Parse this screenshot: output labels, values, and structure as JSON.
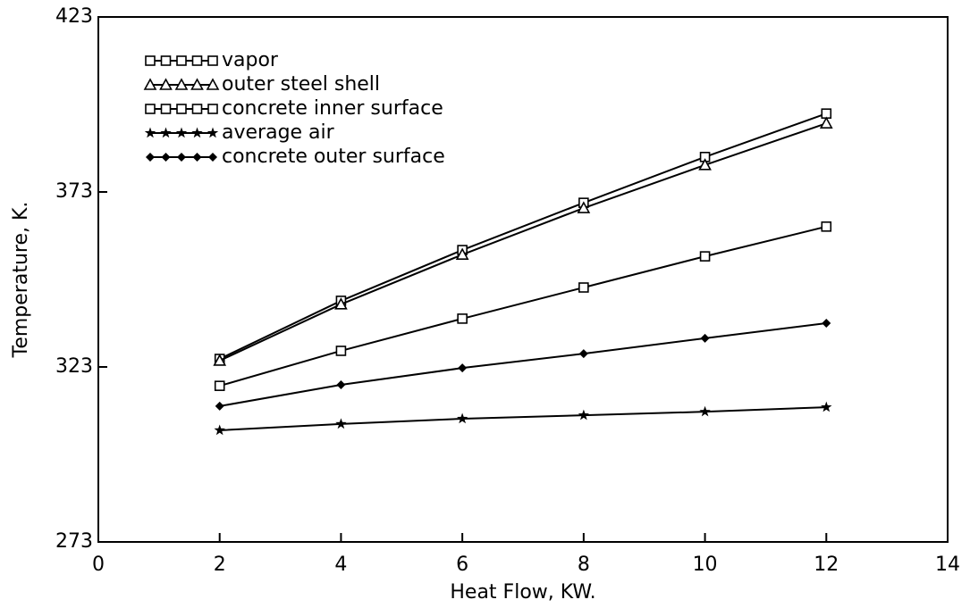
{
  "chart_data": {
    "type": "line",
    "x_label": "Heat Flow, KW.",
    "y_label": "Temperature, K.",
    "x": [
      2,
      4,
      6,
      8,
      10,
      12
    ],
    "series": [
      {
        "name": "vapor",
        "color": "#000000",
        "marker": "square",
        "values": [
          325.3,
          341.9,
          356.4,
          369.9,
          383.0,
          395.4
        ]
      },
      {
        "name": "outer steel shell",
        "color": "#000000",
        "marker": "triangle",
        "values": [
          324.8,
          340.9,
          355.1,
          368.4,
          380.7,
          392.6
        ]
      },
      {
        "name": "concrete inner surface",
        "color": "#000000",
        "marker": "square",
        "values": [
          317.6,
          327.6,
          336.8,
          345.7,
          354.6,
          363.1
        ]
      },
      {
        "name": "average air",
        "color": "#000000",
        "marker": "star",
        "values": [
          304.9,
          306.7,
          308.2,
          309.2,
          310.2,
          311.5
        ]
      },
      {
        "name": "concrete outer surface",
        "color": "#000000",
        "marker": "diamond",
        "values": [
          311.8,
          317.9,
          322.7,
          326.8,
          331.2,
          335.5
        ]
      }
    ],
    "xlim": [
      0,
      14
    ],
    "xticks": [
      0,
      2,
      4,
      6,
      8,
      10,
      12,
      14
    ],
    "ylim": [
      273,
      423
    ],
    "yticks": [
      273,
      323,
      373,
      423
    ],
    "grid": false,
    "legend": "upper left"
  }
}
